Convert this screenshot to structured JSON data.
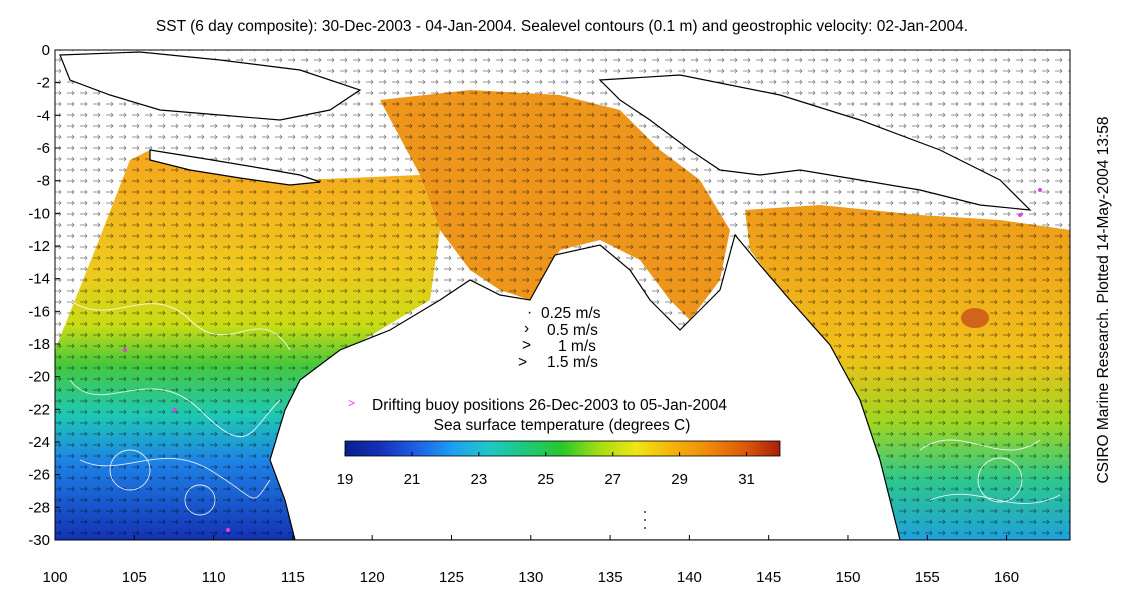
{
  "title": "SST (6 day composite): 30-Dec-2003 - 04-Jan-2004. Sealevel contours (0.1 m) and geostrophic velocity: 02-Jan-2004.",
  "credit": "CSIRO Marine Research. Plotted 14-May-2004 13:58",
  "chart_data": {
    "type": "heatmap",
    "title": "SST (6 day composite): 30-Dec-2003 - 04-Jan-2004. Sealevel contours (0.1 m) and geostrophic velocity: 02-Jan-2004.",
    "x_range": [
      100,
      164
    ],
    "y_range": [
      -30,
      0
    ],
    "x_ticks": [
      "100",
      "105",
      "110",
      "115",
      "120",
      "125",
      "130",
      "135",
      "140",
      "145",
      "150",
      "155",
      "160"
    ],
    "y_ticks": [
      "0",
      "-2",
      "-4",
      "-6",
      "-8",
      "-10",
      "-12",
      "-14",
      "-16",
      "-18",
      "-20",
      "-22",
      "-24",
      "-26",
      "-28",
      "-30"
    ],
    "colorbar": {
      "label": "Sea surface temperature (degrees C)",
      "range": [
        19,
        32
      ],
      "ticks": [
        "19",
        "21",
        "23",
        "25",
        "27",
        "29",
        "31"
      ]
    },
    "velocity_legend": [
      "0.25 m/s",
      "0.5 m/s",
      "1 m/s",
      "1.5 m/s"
    ],
    "buoy_legend": "Drifting buoy positions 26-Dec-2003 to 05-Jan-2004",
    "sea_level_contour_interval_m": 0.1
  },
  "colors": {
    "land": "#ffffff",
    "coastline": "#000000",
    "buoy_marker": "#e040e0",
    "ssh_contour": "#ffffff"
  }
}
